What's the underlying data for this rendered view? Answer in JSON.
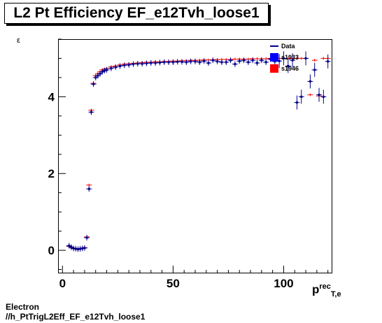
{
  "title": "L2 Pt Efficiency EF_e12Tvh_loose1",
  "footer": {
    "line1": "Electron",
    "line2": "//h_PtTrigL2Eff_EF_e12Tvh_loose1"
  },
  "chart_data": {
    "type": "scatter",
    "ylabel": "ε",
    "xlabel_main": "p",
    "xlabel_sup": "rec",
    "xlabel_sub": "T,e",
    "xlim": [
      -2,
      122
    ],
    "ylim": [
      -0.6,
      5.5
    ],
    "xticks": [
      0,
      50,
      100
    ],
    "yticks": [
      0,
      2,
      4
    ],
    "legend": {
      "position": "top-right",
      "entries": [
        {
          "label": "Data",
          "color": "#00008b",
          "style": "line"
        },
        {
          "label": "s1933",
          "color": "#0000ff",
          "style": "box"
        },
        {
          "label": "s1946",
          "color": "#ff0000",
          "style": "box"
        }
      ]
    },
    "series": [
      {
        "name": "Data",
        "color": "#00008b",
        "x": [
          3,
          4,
          5,
          6,
          7,
          8,
          9,
          10,
          11,
          12,
          13,
          14,
          15,
          16,
          17,
          18,
          19,
          20,
          22,
          24,
          26,
          28,
          30,
          32,
          34,
          36,
          38,
          40,
          42,
          44,
          46,
          48,
          50,
          52,
          54,
          56,
          58,
          60,
          62,
          64,
          66,
          68,
          70,
          72,
          74,
          76,
          78,
          80,
          82,
          84,
          86,
          88,
          90,
          92,
          94,
          96,
          98,
          100,
          102,
          104,
          106,
          108,
          110,
          112,
          114,
          116,
          118,
          120
        ],
        "y": [
          0.12,
          0.08,
          0.05,
          0.04,
          0.03,
          0.04,
          0.05,
          0.06,
          0.33,
          1.6,
          3.6,
          4.33,
          4.5,
          4.55,
          4.6,
          4.65,
          4.68,
          4.7,
          4.74,
          4.77,
          4.8,
          4.82,
          4.83,
          4.85,
          4.86,
          4.86,
          4.87,
          4.88,
          4.88,
          4.89,
          4.9,
          4.9,
          4.9,
          4.91,
          4.91,
          4.9,
          4.92,
          4.92,
          4.9,
          4.93,
          4.88,
          4.95,
          4.92,
          4.9,
          4.9,
          4.95,
          4.85,
          4.93,
          4.95,
          4.9,
          4.95,
          4.88,
          4.95,
          4.9,
          4.98,
          4.92,
          4.93,
          5.0,
          4.8,
          4.95,
          3.85,
          4.0,
          5.0,
          4.4,
          4.7,
          4.05,
          4.0,
          4.92
        ]
      },
      {
        "name": "s1946",
        "color": "#ff0000",
        "x": [
          3,
          4,
          5,
          6,
          7,
          8,
          9,
          10,
          11,
          12,
          13,
          14,
          15,
          16,
          17,
          18,
          19,
          20,
          22,
          24,
          26,
          28,
          30,
          32,
          34,
          36,
          38,
          40,
          42,
          44,
          46,
          48,
          50,
          52,
          54,
          56,
          58,
          60,
          62,
          64,
          66,
          68,
          70,
          72,
          74,
          76,
          78,
          80,
          82,
          84,
          86,
          88,
          90,
          92,
          94,
          96,
          98,
          100,
          102,
          104,
          106,
          108,
          110,
          112,
          114,
          116,
          118,
          120
        ],
        "y": [
          0.1,
          0.07,
          0.05,
          0.04,
          0.03,
          0.04,
          0.05,
          0.07,
          0.35,
          1.7,
          3.65,
          4.35,
          4.55,
          4.6,
          4.65,
          4.7,
          4.72,
          4.74,
          4.78,
          4.8,
          4.83,
          4.85,
          4.86,
          4.87,
          4.88,
          4.89,
          4.9,
          4.9,
          4.91,
          4.91,
          4.92,
          4.92,
          4.93,
          4.93,
          4.94,
          4.94,
          4.95,
          4.95,
          4.95,
          4.96,
          4.96,
          4.96,
          4.97,
          4.97,
          4.97,
          4.97,
          4.98,
          4.98,
          4.98,
          4.98,
          4.99,
          4.99,
          4.99,
          4.99,
          5.0,
          5.0,
          5.0,
          5.0,
          5.0,
          5.0,
          5.0,
          5.0,
          5.0,
          4.05,
          4.95,
          4.02,
          5.0,
          5.0
        ]
      }
    ]
  }
}
